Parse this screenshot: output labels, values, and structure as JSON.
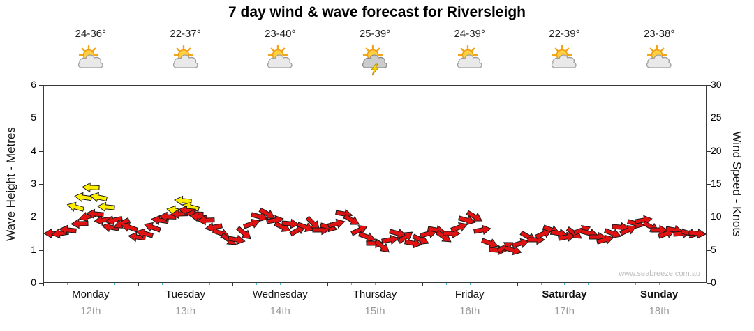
{
  "title": "7 day wind & wave forecast for Riversleigh",
  "watermark": "www.seabreeze.com.au",
  "axes": {
    "left_label": "Wave Height - Metres",
    "right_label": "Wind Speed - Knots",
    "left_ticks": [
      0,
      1,
      2,
      3,
      4,
      5,
      6
    ],
    "right_ticks": [
      0,
      5,
      10,
      15,
      20,
      25,
      30
    ]
  },
  "days": [
    {
      "name": "Monday",
      "date": "12th",
      "temp": "24-36°",
      "icon": "sun-cloud",
      "bold": false
    },
    {
      "name": "Tuesday",
      "date": "13th",
      "temp": "22-37°",
      "icon": "sun-cloud",
      "bold": false
    },
    {
      "name": "Wednesday",
      "date": "14th",
      "temp": "23-40°",
      "icon": "sun-cloud",
      "bold": false
    },
    {
      "name": "Thursday",
      "date": "15th",
      "temp": "25-39°",
      "icon": "storm",
      "bold": false
    },
    {
      "name": "Friday",
      "date": "16th",
      "temp": "24-39°",
      "icon": "sun-cloud",
      "bold": false
    },
    {
      "name": "Saturday",
      "date": "17th",
      "temp": "22-39°",
      "icon": "sun-cloud",
      "bold": true
    },
    {
      "name": "Sunday",
      "date": "18th",
      "temp": "23-38°",
      "icon": "sun-cloud",
      "bold": true
    }
  ],
  "colors": {
    "arrow_red": "#e31212",
    "arrow_yellow": "#ffee00",
    "axis": "#333333",
    "date_grey": "#9a9a9a",
    "tick_teal": "#3fbdc4"
  },
  "chart_data": {
    "type": "scatter",
    "subtype": "wind-arrows",
    "title": "7 day wind & wave forecast for Riversleigh",
    "x_unit": "hours-from-start",
    "x_range": [
      0,
      168
    ],
    "categories": [
      "Monday 12th",
      "Tuesday 13th",
      "Wednesday 14th",
      "Thursday 15th",
      "Friday 16th",
      "Saturday 17th",
      "Sunday 18th"
    ],
    "left_axis": {
      "label": "Wave Height - Metres",
      "range": [
        0,
        6
      ]
    },
    "right_axis": {
      "label": "Wind Speed - Knots",
      "range": [
        0,
        30
      ]
    },
    "legend": "each point = wind arrow [hour, knots, direction_deg (0=right), color r=red|y=yellow]",
    "arrows": [
      [
        0,
        7.5,
        180,
        "r"
      ],
      [
        2,
        7.5,
        172,
        "r"
      ],
      [
        4,
        8,
        186,
        "r"
      ],
      [
        6,
        11.5,
        196,
        "y"
      ],
      [
        8,
        13,
        188,
        "y"
      ],
      [
        10,
        14.5,
        182,
        "y"
      ],
      [
        12,
        13,
        192,
        "y"
      ],
      [
        14,
        11.5,
        185,
        "y"
      ],
      [
        7,
        9,
        178,
        "r"
      ],
      [
        9,
        10,
        165,
        "r"
      ],
      [
        11,
        10.5,
        185,
        "r"
      ],
      [
        13,
        9.5,
        172,
        "r"
      ],
      [
        15,
        8.5,
        190,
        "r"
      ],
      [
        16,
        9.5,
        168,
        "r"
      ],
      [
        18,
        9,
        152,
        "r"
      ],
      [
        20,
        8.5,
        200,
        "r"
      ],
      [
        22,
        7,
        188,
        "r"
      ],
      [
        24,
        7.5,
        195,
        "r"
      ],
      [
        26,
        8.5,
        200,
        "r"
      ],
      [
        28,
        9.5,
        188,
        "r"
      ],
      [
        30,
        10,
        182,
        "r"
      ],
      [
        32,
        11,
        190,
        "y"
      ],
      [
        34,
        12.5,
        185,
        "y"
      ],
      [
        36,
        11.5,
        195,
        "y"
      ],
      [
        33,
        10.5,
        178,
        "r"
      ],
      [
        35,
        11,
        186,
        "r"
      ],
      [
        37,
        10.5,
        182,
        "r"
      ],
      [
        38,
        10,
        188,
        "r"
      ],
      [
        40,
        9.5,
        178,
        "r"
      ],
      [
        42,
        8.5,
        170,
        "r"
      ],
      [
        44,
        7.5,
        20,
        "r"
      ],
      [
        46,
        6.5,
        35,
        "r"
      ],
      [
        48,
        6.5,
        10,
        "r"
      ],
      [
        50,
        7.5,
        40,
        "r"
      ],
      [
        52,
        9,
        340,
        "r"
      ],
      [
        54,
        10,
        15,
        "r"
      ],
      [
        56,
        10.5,
        30,
        "r"
      ],
      [
        58,
        9.5,
        350,
        "r"
      ],
      [
        60,
        8.5,
        25,
        "r"
      ],
      [
        62,
        9,
        5,
        "r"
      ],
      [
        64,
        8,
        330,
        "r"
      ],
      [
        66,
        8.5,
        20,
        "r"
      ],
      [
        68,
        9,
        45,
        "r"
      ],
      [
        70,
        8,
        0,
        "r"
      ],
      [
        72,
        8.5,
        15,
        "r"
      ],
      [
        74,
        9,
        345,
        "r"
      ],
      [
        76,
        10.5,
        10,
        "r"
      ],
      [
        78,
        9.5,
        30,
        "r"
      ],
      [
        80,
        8,
        335,
        "r"
      ],
      [
        82,
        7,
        20,
        "r"
      ],
      [
        84,
        6,
        0,
        "r"
      ],
      [
        86,
        5.5,
        40,
        "r"
      ],
      [
        88,
        6.5,
        350,
        "r"
      ],
      [
        90,
        7.5,
        15,
        "r"
      ],
      [
        92,
        7,
        325,
        "r"
      ],
      [
        94,
        6,
        10,
        "r"
      ],
      [
        96,
        6.5,
        25,
        "r"
      ],
      [
        98,
        7.5,
        345,
        "r"
      ],
      [
        100,
        8,
        10,
        "r"
      ],
      [
        102,
        7,
        35,
        "r"
      ],
      [
        104,
        7.5,
        0,
        "r"
      ],
      [
        106,
        8.5,
        340,
        "r"
      ],
      [
        108,
        9.5,
        15,
        "r"
      ],
      [
        110,
        10,
        30,
        "r"
      ],
      [
        112,
        8,
        350,
        "r"
      ],
      [
        114,
        6,
        20,
        "r"
      ],
      [
        116,
        5,
        5,
        "r"
      ],
      [
        118,
        5.5,
        330,
        "r"
      ],
      [
        120,
        5,
        15,
        "r"
      ],
      [
        122,
        6,
        345,
        "r"
      ],
      [
        124,
        7,
        30,
        "r"
      ],
      [
        126,
        6.5,
        0,
        "r"
      ],
      [
        128,
        7.5,
        335,
        "r"
      ],
      [
        130,
        8,
        20,
        "r"
      ],
      [
        132,
        7.5,
        10,
        "r"
      ],
      [
        134,
        7,
        350,
        "r"
      ],
      [
        136,
        7.5,
        35,
        "r"
      ],
      [
        138,
        8,
        340,
        "r"
      ],
      [
        140,
        7.5,
        15,
        "r"
      ],
      [
        142,
        7,
        0,
        "r"
      ],
      [
        144,
        6.5,
        345,
        "r"
      ],
      [
        146,
        7.5,
        20,
        "r"
      ],
      [
        148,
        8.5,
        5,
        "r"
      ],
      [
        150,
        8,
        335,
        "r"
      ],
      [
        152,
        9,
        15,
        "r"
      ],
      [
        154,
        9.5,
        350,
        "r"
      ],
      [
        156,
        8.5,
        30,
        "r"
      ],
      [
        158,
        8,
        0,
        "r"
      ],
      [
        160,
        7.5,
        340,
        "r"
      ],
      [
        162,
        8,
        10,
        "r"
      ],
      [
        164,
        7.5,
        355,
        "r"
      ],
      [
        166,
        7.5,
        15,
        "r"
      ],
      [
        168,
        7.5,
        5,
        "r"
      ]
    ]
  }
}
